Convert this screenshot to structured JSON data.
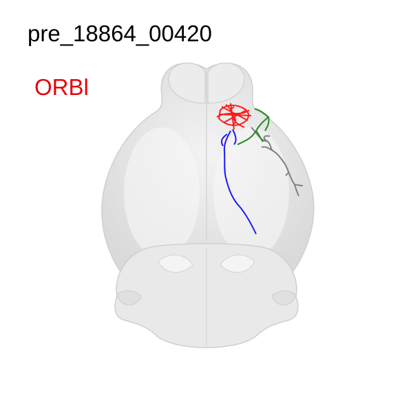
{
  "header": {
    "title": "pre_18864_00420"
  },
  "label": {
    "region": "ORBl",
    "color": "#e8000a"
  },
  "figure": {
    "image": "mouse-brain-dorsal-view",
    "colors": {
      "brain_fill": "#e6e6e6",
      "brain_stroke": "#d0d0d0",
      "soma_tuft": "#ff1a1a",
      "axon_blue": "#1a1aff",
      "axon_green": "#228b22",
      "axon_gray": "#808080"
    }
  }
}
